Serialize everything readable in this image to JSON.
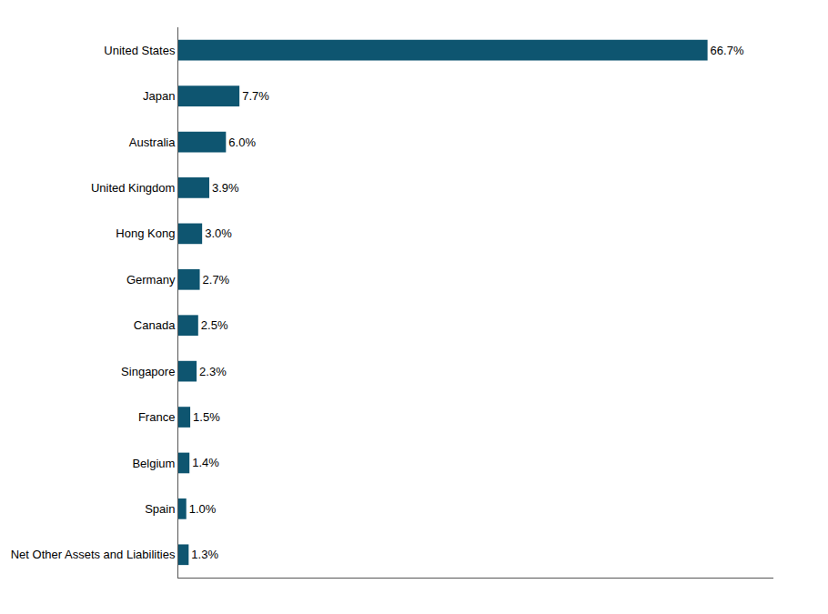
{
  "chart_data": {
    "type": "bar",
    "orientation": "horizontal",
    "categories": [
      "United States",
      "Japan",
      "Australia",
      "United Kingdom",
      "Hong Kong",
      "Germany",
      "Canada",
      "Singapore",
      "France",
      "Belgium",
      "Spain",
      "Net Other Assets and Liabilities"
    ],
    "values": [
      66.7,
      7.7,
      6.0,
      3.9,
      3.0,
      2.7,
      2.5,
      2.3,
      1.5,
      1.4,
      1.0,
      1.3
    ],
    "value_labels": [
      "66.7%",
      "7.7%",
      "6.0%",
      "3.9%",
      "3.0%",
      "2.7%",
      "2.5%",
      "2.3%",
      "1.5%",
      "1.4%",
      "1.0%",
      "1.3%"
    ],
    "color": "#0e5570",
    "xlim": [
      0,
      75
    ],
    "xticks": [],
    "tick_labels": "y",
    "data_labels": true,
    "grid": false
  }
}
